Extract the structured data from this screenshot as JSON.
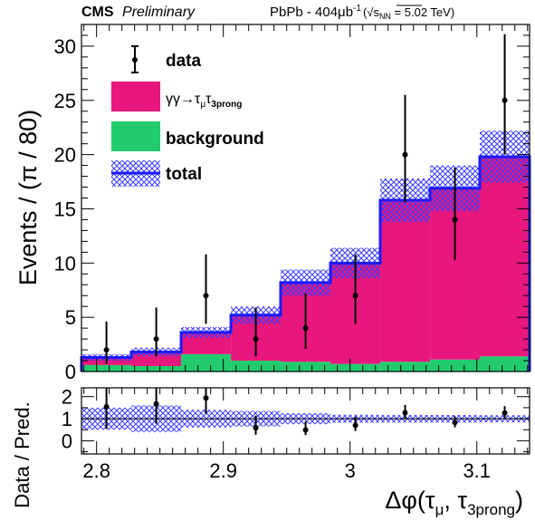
{
  "header": {
    "experiment": "CMS",
    "status": "Preliminary",
    "dataset_prefix": "PbPb - 404μb",
    "dataset_exp": "-1",
    "energy_open": "(",
    "energy_label": "s",
    "energy_sub": "NN",
    "energy_value": " = 5.02 TeV)"
  },
  "axes": {
    "ylabel_top": "Events / (π / 80)",
    "ylabel_bottom": "Data / Pred.",
    "xlabel_main": "Δφ(τ",
    "xlabel_sub1": "μ",
    "xlabel_mid": ", τ",
    "xlabel_sub2": "3prong",
    "xlabel_end": ")"
  },
  "legend": {
    "data": "data",
    "signal_main": "γγ→τ",
    "signal_sub1": "μ",
    "signal_mid": "τ",
    "signal_sub2": "3prong",
    "background": "background",
    "total": "total"
  },
  "colors": {
    "signal": "#e8177d",
    "background": "#22cc6e",
    "total": "#1a1aff",
    "uncertainty": "#4a4aff",
    "data": "#000000"
  },
  "chart_data": {
    "type": "bar",
    "stacked": true,
    "bin_edges": [
      2.7881,
      2.8274,
      2.8667,
      2.906,
      2.9452,
      2.9845,
      3.0238,
      3.0631,
      3.1023,
      3.1416
    ],
    "series": [
      {
        "name": "background",
        "values": [
          0.6,
          0.5,
          1.6,
          1.0,
          0.9,
          0.7,
          0.9,
          1.1,
          1.4
        ]
      },
      {
        "name": "γγ→τμτ3prong",
        "values": [
          0.7,
          1.3,
          2.0,
          4.2,
          7.3,
          9.3,
          14.9,
          15.8,
          18.4
        ]
      }
    ],
    "total": [
      1.3,
      1.8,
      3.6,
      5.2,
      8.2,
      10.0,
      15.8,
      16.9,
      19.8
    ],
    "total_unc": [
      0.3,
      0.4,
      0.5,
      0.8,
      1.2,
      1.4,
      2.0,
      2.1,
      2.4
    ],
    "data": {
      "x": [
        2.8078,
        2.8471,
        2.8863,
        2.9256,
        2.9649,
        3.0042,
        3.0434,
        3.0827,
        3.122
      ],
      "y": [
        2,
        3,
        7,
        3,
        4,
        7,
        20,
        14,
        25
      ],
      "err_up": [
        2.6,
        2.9,
        3.8,
        2.9,
        3.2,
        3.8,
        5.5,
        4.8,
        6.1
      ],
      "err_down": [
        1.3,
        1.6,
        2.6,
        1.6,
        1.9,
        2.6,
        4.4,
        3.7,
        5.0
      ]
    },
    "ratio": {
      "y": [
        1.54,
        1.67,
        1.94,
        0.58,
        0.49,
        0.7,
        1.27,
        0.83,
        1.26
      ],
      "err_up": [
        2.0,
        1.6,
        1.05,
        0.56,
        0.39,
        0.38,
        0.35,
        0.28,
        0.31
      ],
      "err_down": [
        1.0,
        0.9,
        0.72,
        0.31,
        0.23,
        0.26,
        0.28,
        0.22,
        0.25
      ],
      "unc_band": [
        0.5,
        0.6,
        0.4,
        0.35,
        0.25,
        0.18,
        0.17,
        0.17,
        0.16
      ]
    },
    "xlim": [
      2.7881,
      3.1416
    ],
    "ylim": [
      0,
      32
    ],
    "ratio_ylim": [
      -0.6,
      2.4
    ],
    "x_ticks": [
      "2.8",
      "2.9",
      "3",
      "3.1"
    ],
    "y_ticks": [
      "0",
      "5",
      "10",
      "15",
      "20",
      "25",
      "30"
    ],
    "ratio_y_ticks": [
      "0",
      "1",
      "2"
    ],
    "legend_position": "top-left"
  }
}
